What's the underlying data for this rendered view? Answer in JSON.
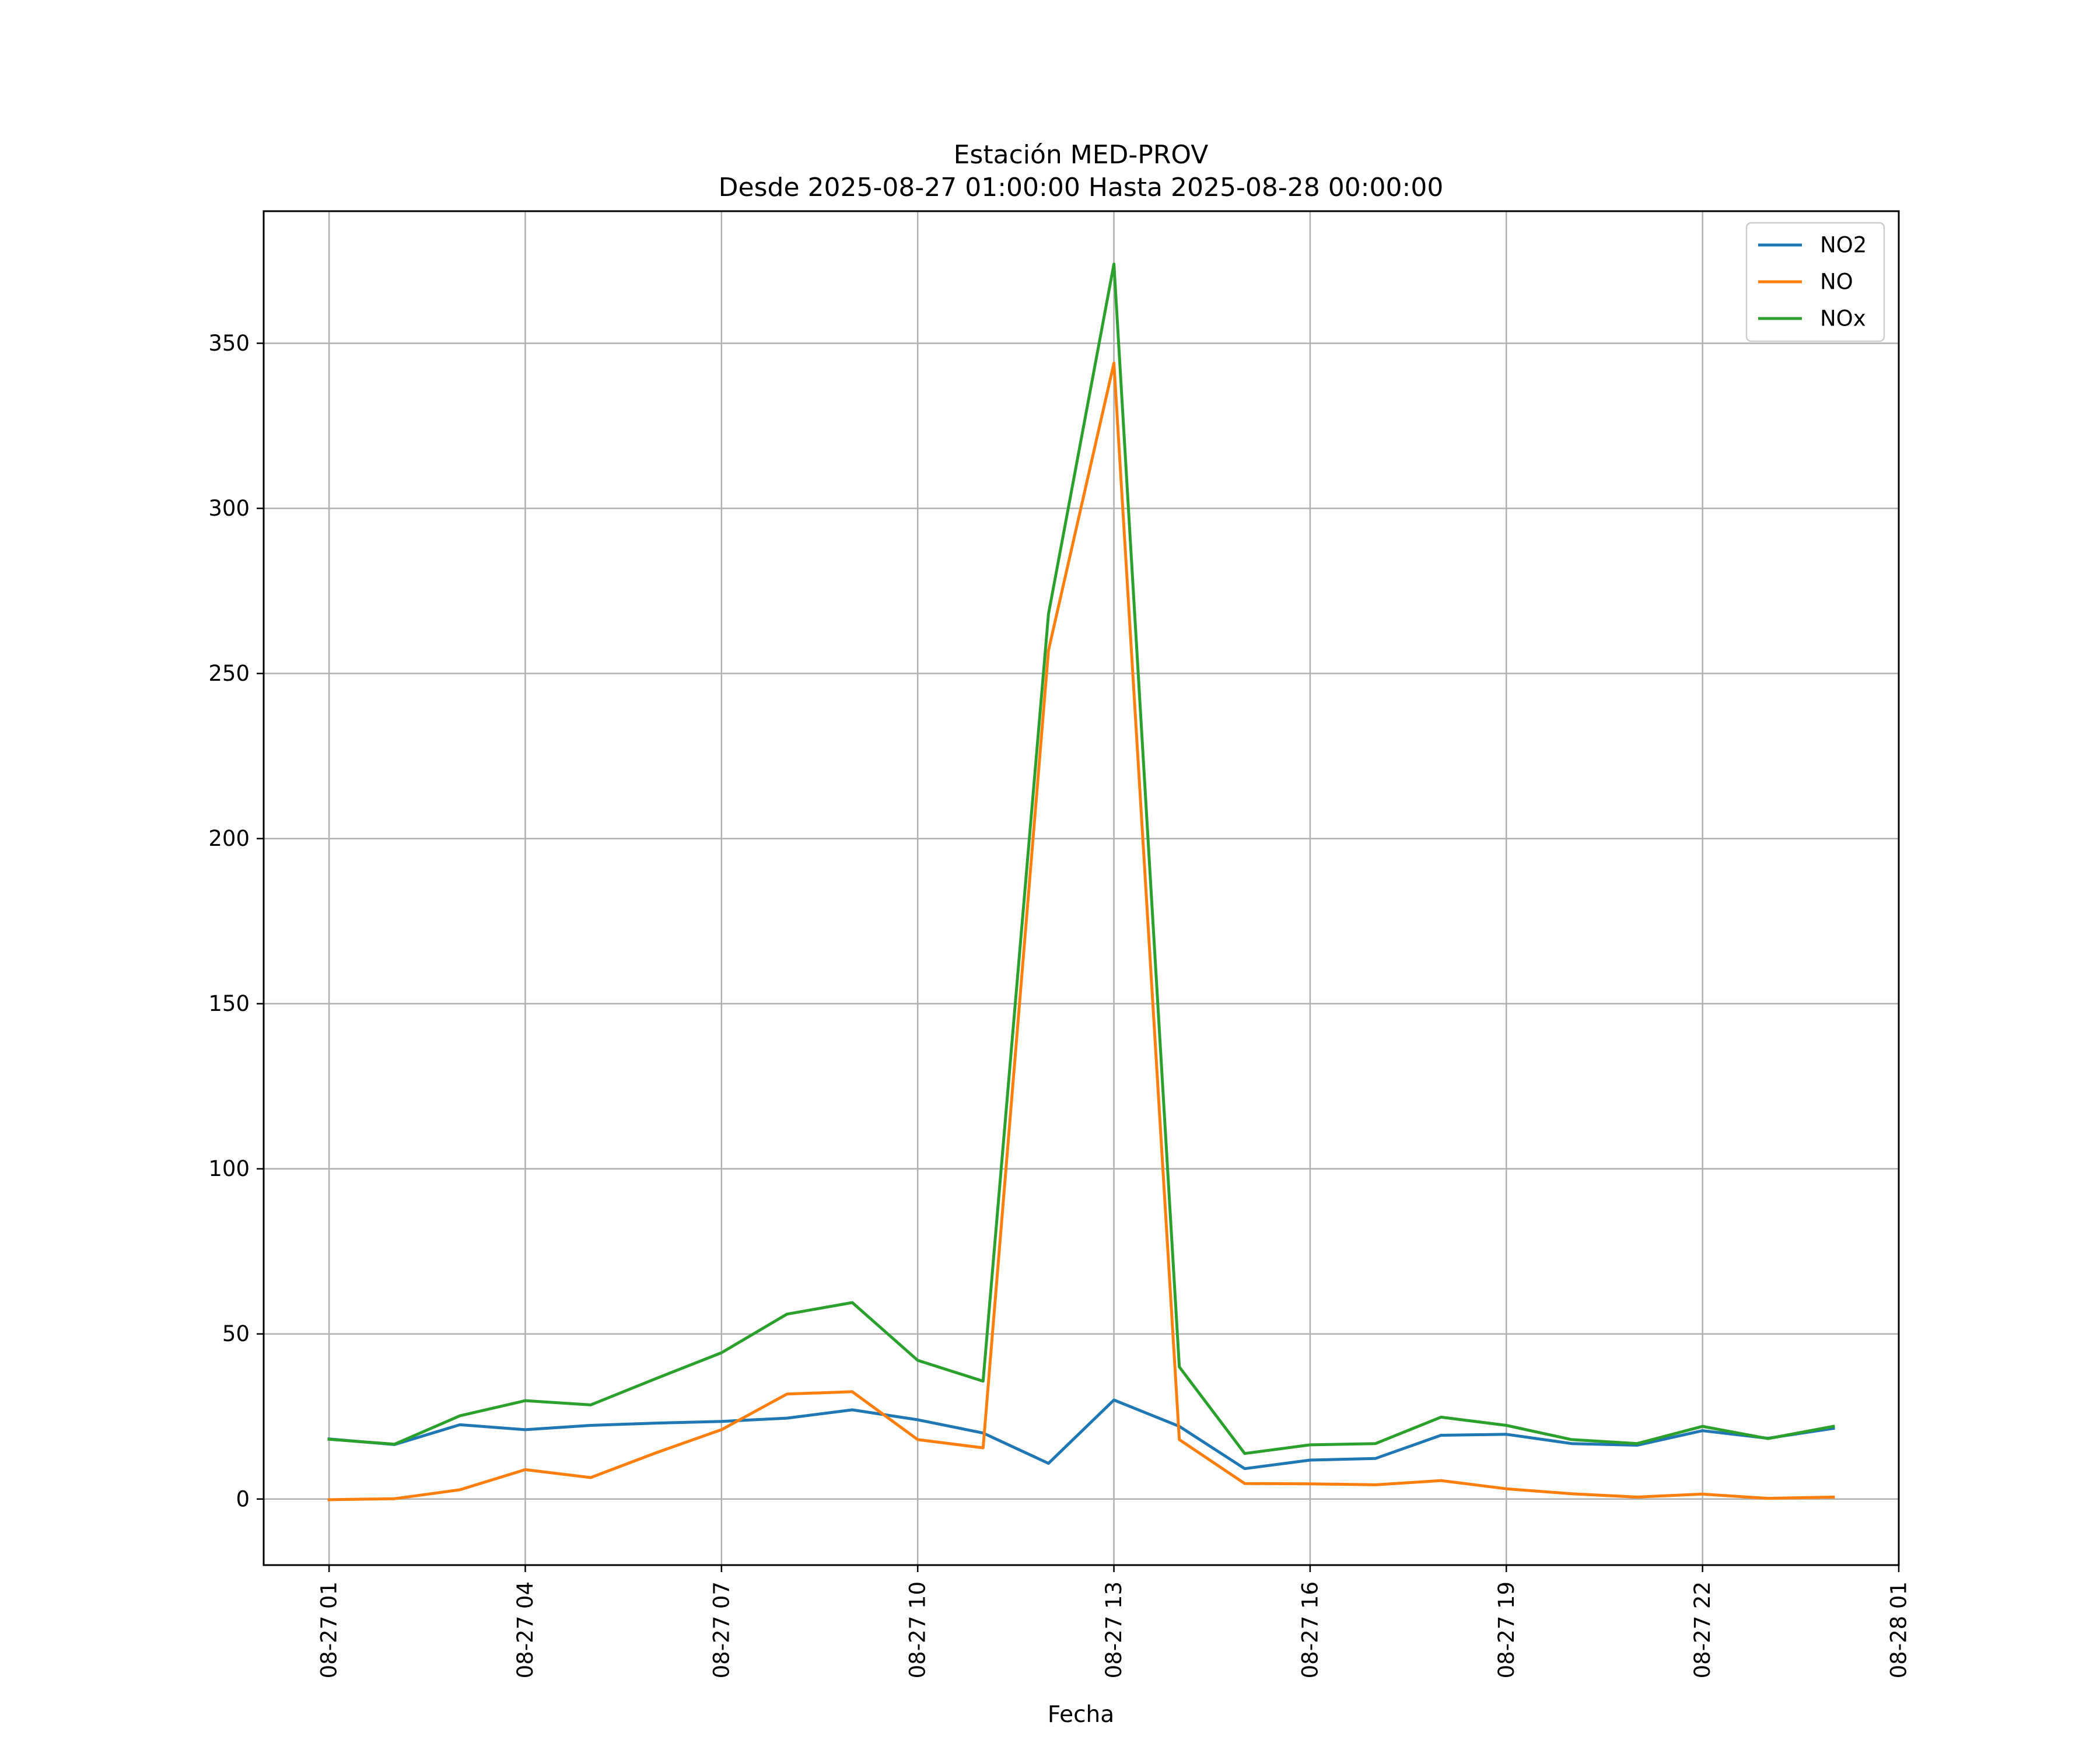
{
  "chart_data": {
    "type": "line",
    "title": "Estación MED-PROV",
    "subtitle": "Desde 2025-08-27 01:00:00 Hasta 2025-08-28 00:00:00",
    "xlabel": "Fecha",
    "ylabel": "",
    "x_format": "%m-%d %H",
    "x_range": [
      "2025-08-27 00:00",
      "2025-08-28 01:00"
    ],
    "ylim": [
      -20,
      390
    ],
    "grid": true,
    "legend_position": "top-right",
    "x_ticks": [
      "2025-08-27 01:00",
      "2025-08-27 04:00",
      "2025-08-27 07:00",
      "2025-08-27 10:00",
      "2025-08-27 13:00",
      "2025-08-27 16:00",
      "2025-08-27 19:00",
      "2025-08-27 22:00",
      "2025-08-28 01:00"
    ],
    "x_tick_labels": [
      "08-27 01",
      "08-27 04",
      "08-27 07",
      "08-27 10",
      "08-27 13",
      "08-27 16",
      "08-27 19",
      "08-27 22",
      "08-28 01"
    ],
    "y_ticks": [
      0,
      50,
      100,
      150,
      200,
      250,
      300,
      350
    ],
    "y_tick_labels": [
      "0",
      "50",
      "100",
      "150",
      "200",
      "250",
      "300",
      "350"
    ],
    "x": [
      "2025-08-27 01:00",
      "2025-08-27 02:00",
      "2025-08-27 03:00",
      "2025-08-27 04:00",
      "2025-08-27 05:00",
      "2025-08-27 06:00",
      "2025-08-27 07:00",
      "2025-08-27 08:00",
      "2025-08-27 09:00",
      "2025-08-27 10:00",
      "2025-08-27 11:00",
      "2025-08-27 12:00",
      "2025-08-27 13:00",
      "2025-08-27 14:00",
      "2025-08-27 15:00",
      "2025-08-27 16:00",
      "2025-08-27 17:00",
      "2025-08-27 18:00",
      "2025-08-27 19:00",
      "2025-08-27 20:00",
      "2025-08-27 21:00",
      "2025-08-27 22:00",
      "2025-08-27 23:00",
      "2025-08-28 00:00"
    ],
    "series": [
      {
        "name": "NO2",
        "color": "#1f77b4",
        "values": [
          18.2,
          16.5,
          22.5,
          21.0,
          22.3,
          23.0,
          23.5,
          24.5,
          27.0,
          24.0,
          20.0,
          10.8,
          30.0,
          22.0,
          9.2,
          11.8,
          12.3,
          19.3,
          19.6,
          16.8,
          16.3,
          20.7,
          18.4,
          21.4
        ]
      },
      {
        "name": "NO",
        "color": "#ff7f0e",
        "values": [
          -0.2,
          0.1,
          2.8,
          8.9,
          6.5,
          14.0,
          21.0,
          31.8,
          32.5,
          18.0,
          15.5,
          257.0,
          344.0,
          18.0,
          4.7,
          4.6,
          4.3,
          5.6,
          3.1,
          1.6,
          0.6,
          1.5,
          0.2,
          0.6
        ]
      },
      {
        "name": "NOx",
        "color": "#2ca02c",
        "values": [
          18.1,
          16.6,
          25.2,
          29.8,
          28.5,
          36.5,
          44.3,
          56.0,
          59.5,
          42.0,
          35.7,
          268.0,
          374.0,
          40.0,
          13.8,
          16.4,
          16.8,
          24.8,
          22.3,
          18.0,
          16.8,
          22.0,
          18.3,
          22.0
        ]
      }
    ]
  }
}
